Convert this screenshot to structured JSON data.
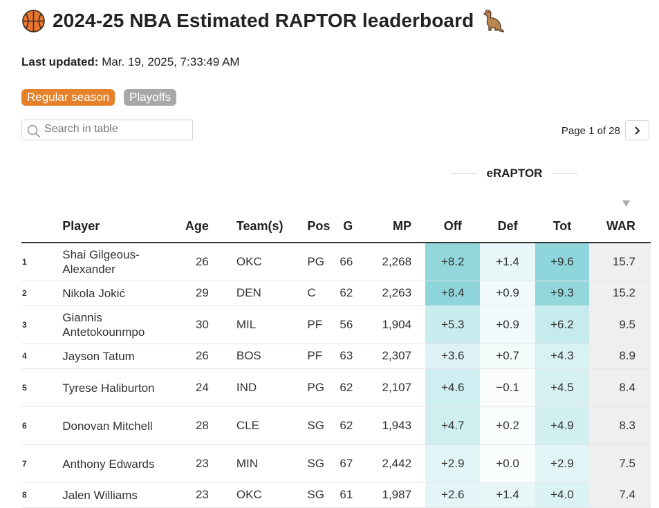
{
  "header": {
    "title": "2024-25 NBA Estimated RAPTOR leaderboard",
    "icons": [
      "basketball-icon",
      "dinosaur-icon"
    ]
  },
  "updated": {
    "label": "Last updated:",
    "value": "Mar. 19, 2025, 7:33:49 AM"
  },
  "tabs": {
    "regular": "Regular season",
    "playoffs": "Playoffs"
  },
  "search": {
    "placeholder": "Search in table"
  },
  "pager": {
    "text": "Page 1 of 28"
  },
  "table": {
    "group_label": "eRAPTOR",
    "columns": [
      "Player",
      "Age",
      "Team(s)",
      "Pos",
      "G",
      "MP",
      "Off",
      "Def",
      "Tot",
      "WAR"
    ],
    "rows": [
      {
        "rank": "1",
        "player": "Shai Gilgeous-Alexander",
        "age": "26",
        "team": "OKC",
        "pos": "PG",
        "g": "66",
        "mp": "2,268",
        "off": "+8.2",
        "def": "+1.4",
        "tot": "+9.6",
        "war": "15.7"
      },
      {
        "rank": "2",
        "player": "Nikola Jokić",
        "age": "29",
        "team": "DEN",
        "pos": "C",
        "g": "62",
        "mp": "2,263",
        "off": "+8.4",
        "def": "+0.9",
        "tot": "+9.3",
        "war": "15.2"
      },
      {
        "rank": "3",
        "player": "Giannis Antetokounmpo",
        "age": "30",
        "team": "MIL",
        "pos": "PF",
        "g": "56",
        "mp": "1,904",
        "off": "+5.3",
        "def": "+0.9",
        "tot": "+6.2",
        "war": "9.5"
      },
      {
        "rank": "4",
        "player": "Jayson Tatum",
        "age": "26",
        "team": "BOS",
        "pos": "PF",
        "g": "63",
        "mp": "2,307",
        "off": "+3.6",
        "def": "+0.7",
        "tot": "+4.3",
        "war": "8.9"
      },
      {
        "rank": "5",
        "player": "Tyrese Haliburton",
        "age": "24",
        "team": "IND",
        "pos": "PG",
        "g": "62",
        "mp": "2,107",
        "off": "+4.6",
        "def": "−0.1",
        "tot": "+4.5",
        "war": "8.4"
      },
      {
        "rank": "6",
        "player": "Donovan Mitchell",
        "age": "28",
        "team": "CLE",
        "pos": "SG",
        "g": "62",
        "mp": "1,943",
        "off": "+4.7",
        "def": "+0.2",
        "tot": "+4.9",
        "war": "8.3"
      },
      {
        "rank": "7",
        "player": "Anthony Edwards",
        "age": "23",
        "team": "MIN",
        "pos": "SG",
        "g": "67",
        "mp": "2,442",
        "off": "+2.9",
        "def": "+0.0",
        "tot": "+2.9",
        "war": "7.5"
      },
      {
        "rank": "8",
        "player": "Jalen Williams",
        "age": "23",
        "team": "OKC",
        "pos": "SG",
        "g": "61",
        "mp": "1,987",
        "off": "+2.6",
        "def": "+1.4",
        "tot": "+4.0",
        "war": "7.4"
      }
    ]
  },
  "colors": {
    "accent_orange": "#e4812a",
    "inactive_gray": "#a8a8a8",
    "teal_strong": "#8fd6dc",
    "teal_light": "#f1fafb",
    "war_bg": "#efefef"
  }
}
